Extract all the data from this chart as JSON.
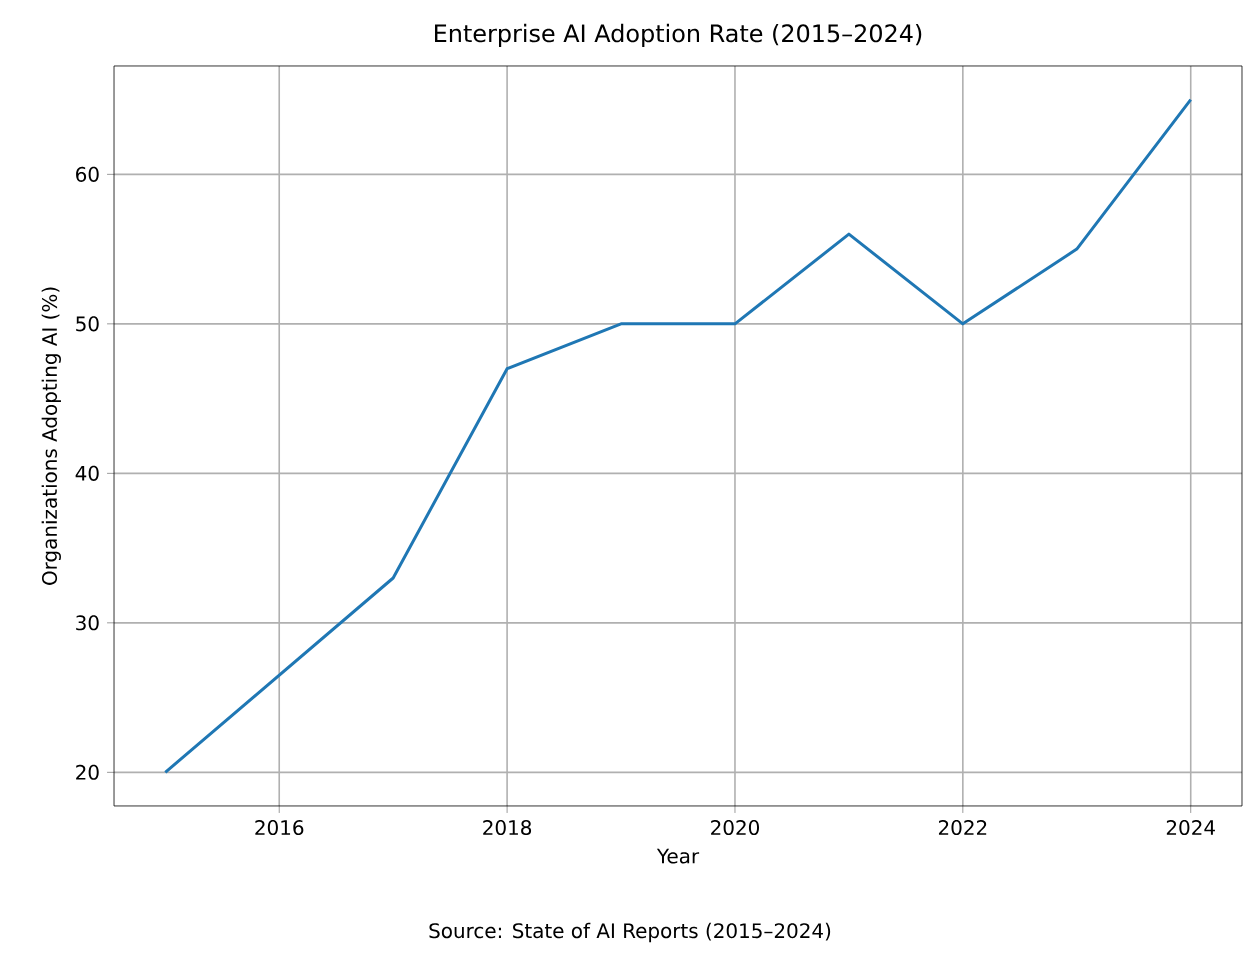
{
  "chart_data": {
    "type": "line",
    "title": "Enterprise AI Adoption Rate (2015–2024)",
    "xlabel": "Year",
    "ylabel": "Organizations Adopting AI (%)",
    "x": [
      2015,
      2016,
      2017,
      2018,
      2019,
      2020,
      2021,
      2022,
      2023,
      2024
    ],
    "series": [
      {
        "color": "#1f77b4",
        "values": [
          20,
          26.5,
          33,
          47,
          50,
          50,
          56,
          50,
          55,
          65
        ]
      }
    ],
    "xlim": [
      2014.55,
      2024.45
    ],
    "ylim": [
      17.75,
      67.25
    ],
    "xticks": [
      2016,
      2018,
      2020,
      2022,
      2024
    ],
    "yticks": [
      20,
      30,
      40,
      50,
      60
    ],
    "grid": true,
    "marker": "none",
    "line_style": "solid",
    "annotations": [
      "Source: State of AI Reports (2015–2024)"
    ]
  }
}
